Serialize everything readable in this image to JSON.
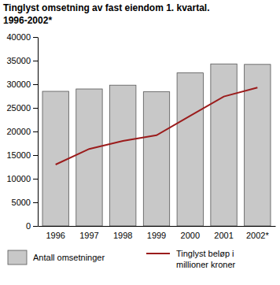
{
  "chart_data": {
    "type": "bar",
    "title": "Tinglyst omsetning av fast eiendom 1. kvartal.\n1996-2002*",
    "categories": [
      "1996",
      "1997",
      "1998",
      "1999",
      "2000",
      "2001",
      "2002*"
    ],
    "series": [
      {
        "name": "Antall omsetninger",
        "type": "bar",
        "color": "#c8c8c8",
        "values": [
          28500,
          29000,
          29800,
          28400,
          32400,
          34300,
          34200
        ]
      },
      {
        "name": "Tinglyst beløp i\nmillioner kroner",
        "type": "line",
        "color": "#9b1c1c",
        "values": [
          13000,
          16300,
          18000,
          19200,
          23300,
          27400,
          29300
        ]
      }
    ],
    "ylim": [
      0,
      40000
    ],
    "yticks": [
      0,
      5000,
      10000,
      15000,
      20000,
      25000,
      30000,
      35000,
      40000
    ],
    "grid": false
  }
}
